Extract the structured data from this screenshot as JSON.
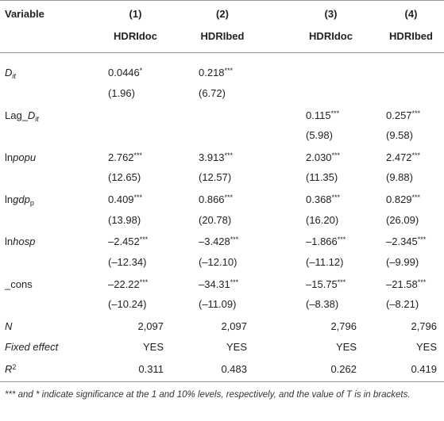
{
  "table": {
    "header": {
      "variable": "Variable",
      "columns": [
        {
          "number": "(1)",
          "name": "HDRIdoc"
        },
        {
          "number": "(2)",
          "name": "HDRIbed"
        },
        {
          "number": "(3)",
          "name": "HDRIdoc"
        },
        {
          "number": "(4)",
          "name": "HDRIbed"
        }
      ]
    },
    "rows": [
      {
        "label": [
          {
            "text": "D",
            "italic": true
          },
          {
            "text": "it",
            "italic": true,
            "sub": true
          }
        ],
        "cells": [
          {
            "text": "0.0446",
            "stars": "*"
          },
          {
            "text": "0.218",
            "stars": "***"
          },
          null,
          null
        ]
      },
      {
        "label": null,
        "cells": [
          {
            "text": "(1.96)"
          },
          {
            "text": "(6.72)"
          },
          null,
          null
        ]
      },
      {
        "label": [
          {
            "text": "Lag_"
          },
          {
            "text": "D",
            "italic": true
          },
          {
            "text": "it",
            "italic": true,
            "sub": true
          }
        ],
        "cells": [
          null,
          null,
          {
            "text": "0.115",
            "stars": "***"
          },
          {
            "text": "0.257",
            "stars": "***"
          }
        ]
      },
      {
        "label": null,
        "cells": [
          null,
          null,
          {
            "text": "(5.98)"
          },
          {
            "text": "(9.58)"
          }
        ]
      },
      {
        "label": [
          {
            "text": "ln"
          },
          {
            "text": "popu",
            "italic": true
          }
        ],
        "cells": [
          {
            "text": "2.762",
            "stars": "***"
          },
          {
            "text": "3.913",
            "stars": "***"
          },
          {
            "text": "2.030",
            "stars": "***"
          },
          {
            "text": "2.472",
            "stars": "***"
          }
        ]
      },
      {
        "label": null,
        "cells": [
          {
            "text": "(12.65)"
          },
          {
            "text": "(12.57)"
          },
          {
            "text": "(11.35)"
          },
          {
            "text": "(9.88)"
          }
        ]
      },
      {
        "label": [
          {
            "text": "ln"
          },
          {
            "text": "gdp",
            "italic": true
          },
          {
            "text": "p",
            "sub": true
          }
        ],
        "cells": [
          {
            "text": "0.409",
            "stars": "***"
          },
          {
            "text": "0.866",
            "stars": "***"
          },
          {
            "text": "0.368",
            "stars": "***"
          },
          {
            "text": "0.829",
            "stars": "***"
          }
        ]
      },
      {
        "label": null,
        "cells": [
          {
            "text": "(13.98)"
          },
          {
            "text": "(20.78)"
          },
          {
            "text": "(16.20)"
          },
          {
            "text": "(26.09)"
          }
        ]
      },
      {
        "label": [
          {
            "text": "ln"
          },
          {
            "text": "hosp",
            "italic": true
          }
        ],
        "cells": [
          {
            "text": "–2.452",
            "stars": "***"
          },
          {
            "text": "–3.428",
            "stars": "***"
          },
          {
            "text": "–1.866",
            "stars": "***"
          },
          {
            "text": "–2.345",
            "stars": "***"
          }
        ]
      },
      {
        "label": null,
        "cells": [
          {
            "text": "(–12.34)"
          },
          {
            "text": "(–12.10)"
          },
          {
            "text": "(–11.12)"
          },
          {
            "text": "(–9.99)"
          }
        ]
      },
      {
        "label": [
          {
            "text": "_cons"
          }
        ],
        "cells": [
          {
            "text": "–22.22",
            "stars": "***"
          },
          {
            "text": "–34.31",
            "stars": "***"
          },
          {
            "text": "–15.75",
            "stars": "***"
          },
          {
            "text": "–21.58",
            "stars": "***"
          }
        ]
      },
      {
        "label": null,
        "cells": [
          {
            "text": "(–10.24)"
          },
          {
            "text": "(–11.09)"
          },
          {
            "text": "(–8.38)"
          },
          {
            "text": "(–8.21)"
          }
        ]
      },
      {
        "label": [
          {
            "text": "N",
            "italic": true
          }
        ],
        "cells": [
          {
            "text": "2,097"
          },
          {
            "text": "2,097"
          },
          {
            "text": "2,796"
          },
          {
            "text": "2,796"
          }
        ]
      },
      {
        "label": [
          {
            "text": "Fixed effect",
            "italic": true
          }
        ],
        "cells": [
          {
            "text": "YES"
          },
          {
            "text": "YES"
          },
          {
            "text": "YES"
          },
          {
            "text": "YES"
          }
        ]
      },
      {
        "label": [
          {
            "text": "R",
            "italic": true
          },
          {
            "text": "2",
            "sup": true
          }
        ],
        "cells": [
          {
            "text": "0.311"
          },
          {
            "text": "0.483"
          },
          {
            "text": "0.262"
          },
          {
            "text": "0.419"
          }
        ]
      }
    ],
    "footnote": "*** and * indicate significance at the 1 and 10% levels, respectively, and the value of T is in brackets."
  }
}
